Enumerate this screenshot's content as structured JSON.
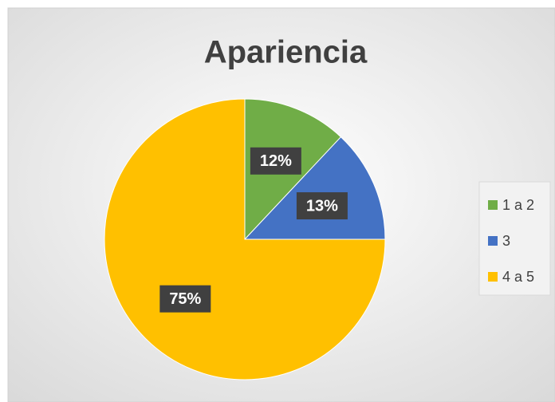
{
  "chart_data": {
    "type": "pie",
    "title": "Apariencia",
    "categories": [
      "1 a 2",
      "3",
      "4 a 5"
    ],
    "values": [
      12,
      13,
      75
    ],
    "value_labels": [
      "12%",
      "13%",
      "75%"
    ],
    "colors": [
      "#70ad47",
      "#4472c4",
      "#ffc000"
    ],
    "legend": "right"
  }
}
